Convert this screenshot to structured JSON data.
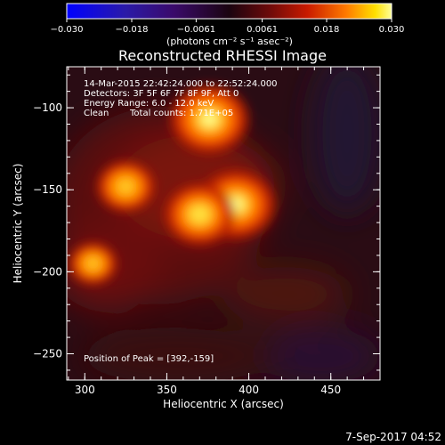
{
  "colorbar": {
    "ticks": [
      {
        "value": -0.03,
        "label": "−0.030"
      },
      {
        "value": -0.018,
        "label": "−0.018"
      },
      {
        "value": -0.0061,
        "label": "−0.0061"
      },
      {
        "value": 0.0061,
        "label": "0.0061"
      },
      {
        "value": 0.018,
        "label": "0.018"
      },
      {
        "value": 0.03,
        "label": "0.030"
      }
    ],
    "range": [
      -0.03,
      0.03
    ],
    "unit_label": "(photons cm⁻² s⁻¹ asec⁻²)"
  },
  "chart_data": {
    "type": "heatmap",
    "title": "Reconstructed RHESSI Image",
    "xlabel": "Heliocentric X (arcsec)",
    "ylabel": "Heliocentric Y (arcsec)",
    "xlim": [
      289,
      480
    ],
    "ylim": [
      -266,
      -75
    ],
    "x_ticks": [
      {
        "value": 300,
        "label": "300"
      },
      {
        "value": 350,
        "label": "350"
      },
      {
        "value": 400,
        "label": "400"
      },
      {
        "value": 450,
        "label": "450"
      }
    ],
    "y_ticks": [
      {
        "value": -100,
        "label": "−100"
      },
      {
        "value": -150,
        "label": "−150"
      },
      {
        "value": -200,
        "label": "−200"
      },
      {
        "value": -250,
        "label": "−250"
      }
    ],
    "sources": [
      {
        "x": 376,
        "y": -107,
        "peak": 0.03
      },
      {
        "x": 392,
        "y": -159,
        "peak": 0.03
      },
      {
        "x": 370,
        "y": -165,
        "peak": 0.026
      },
      {
        "x": 325,
        "y": -148,
        "peak": 0.02
      },
      {
        "x": 305,
        "y": -195,
        "peak": 0.015
      }
    ],
    "annotations": {
      "time_range": "14-Mar-2015 22:42:24.000 to 22:52:24.000",
      "detectors": "Detectors: 3F 5F 6F 7F 8F 9F, Att 0",
      "energy_range": "Energy Range: 6.0 - 12.0 keV",
      "method": "Clean",
      "total_counts": "Total counts: 1.71E+05",
      "peak_position": "Position of Peak = [392,-159]"
    },
    "colors": {
      "background": "#000000",
      "map_low": "#2a0a1a",
      "map_high": "#ffff66"
    }
  },
  "footer": {
    "date": "7-Sep-2017 04:52"
  }
}
